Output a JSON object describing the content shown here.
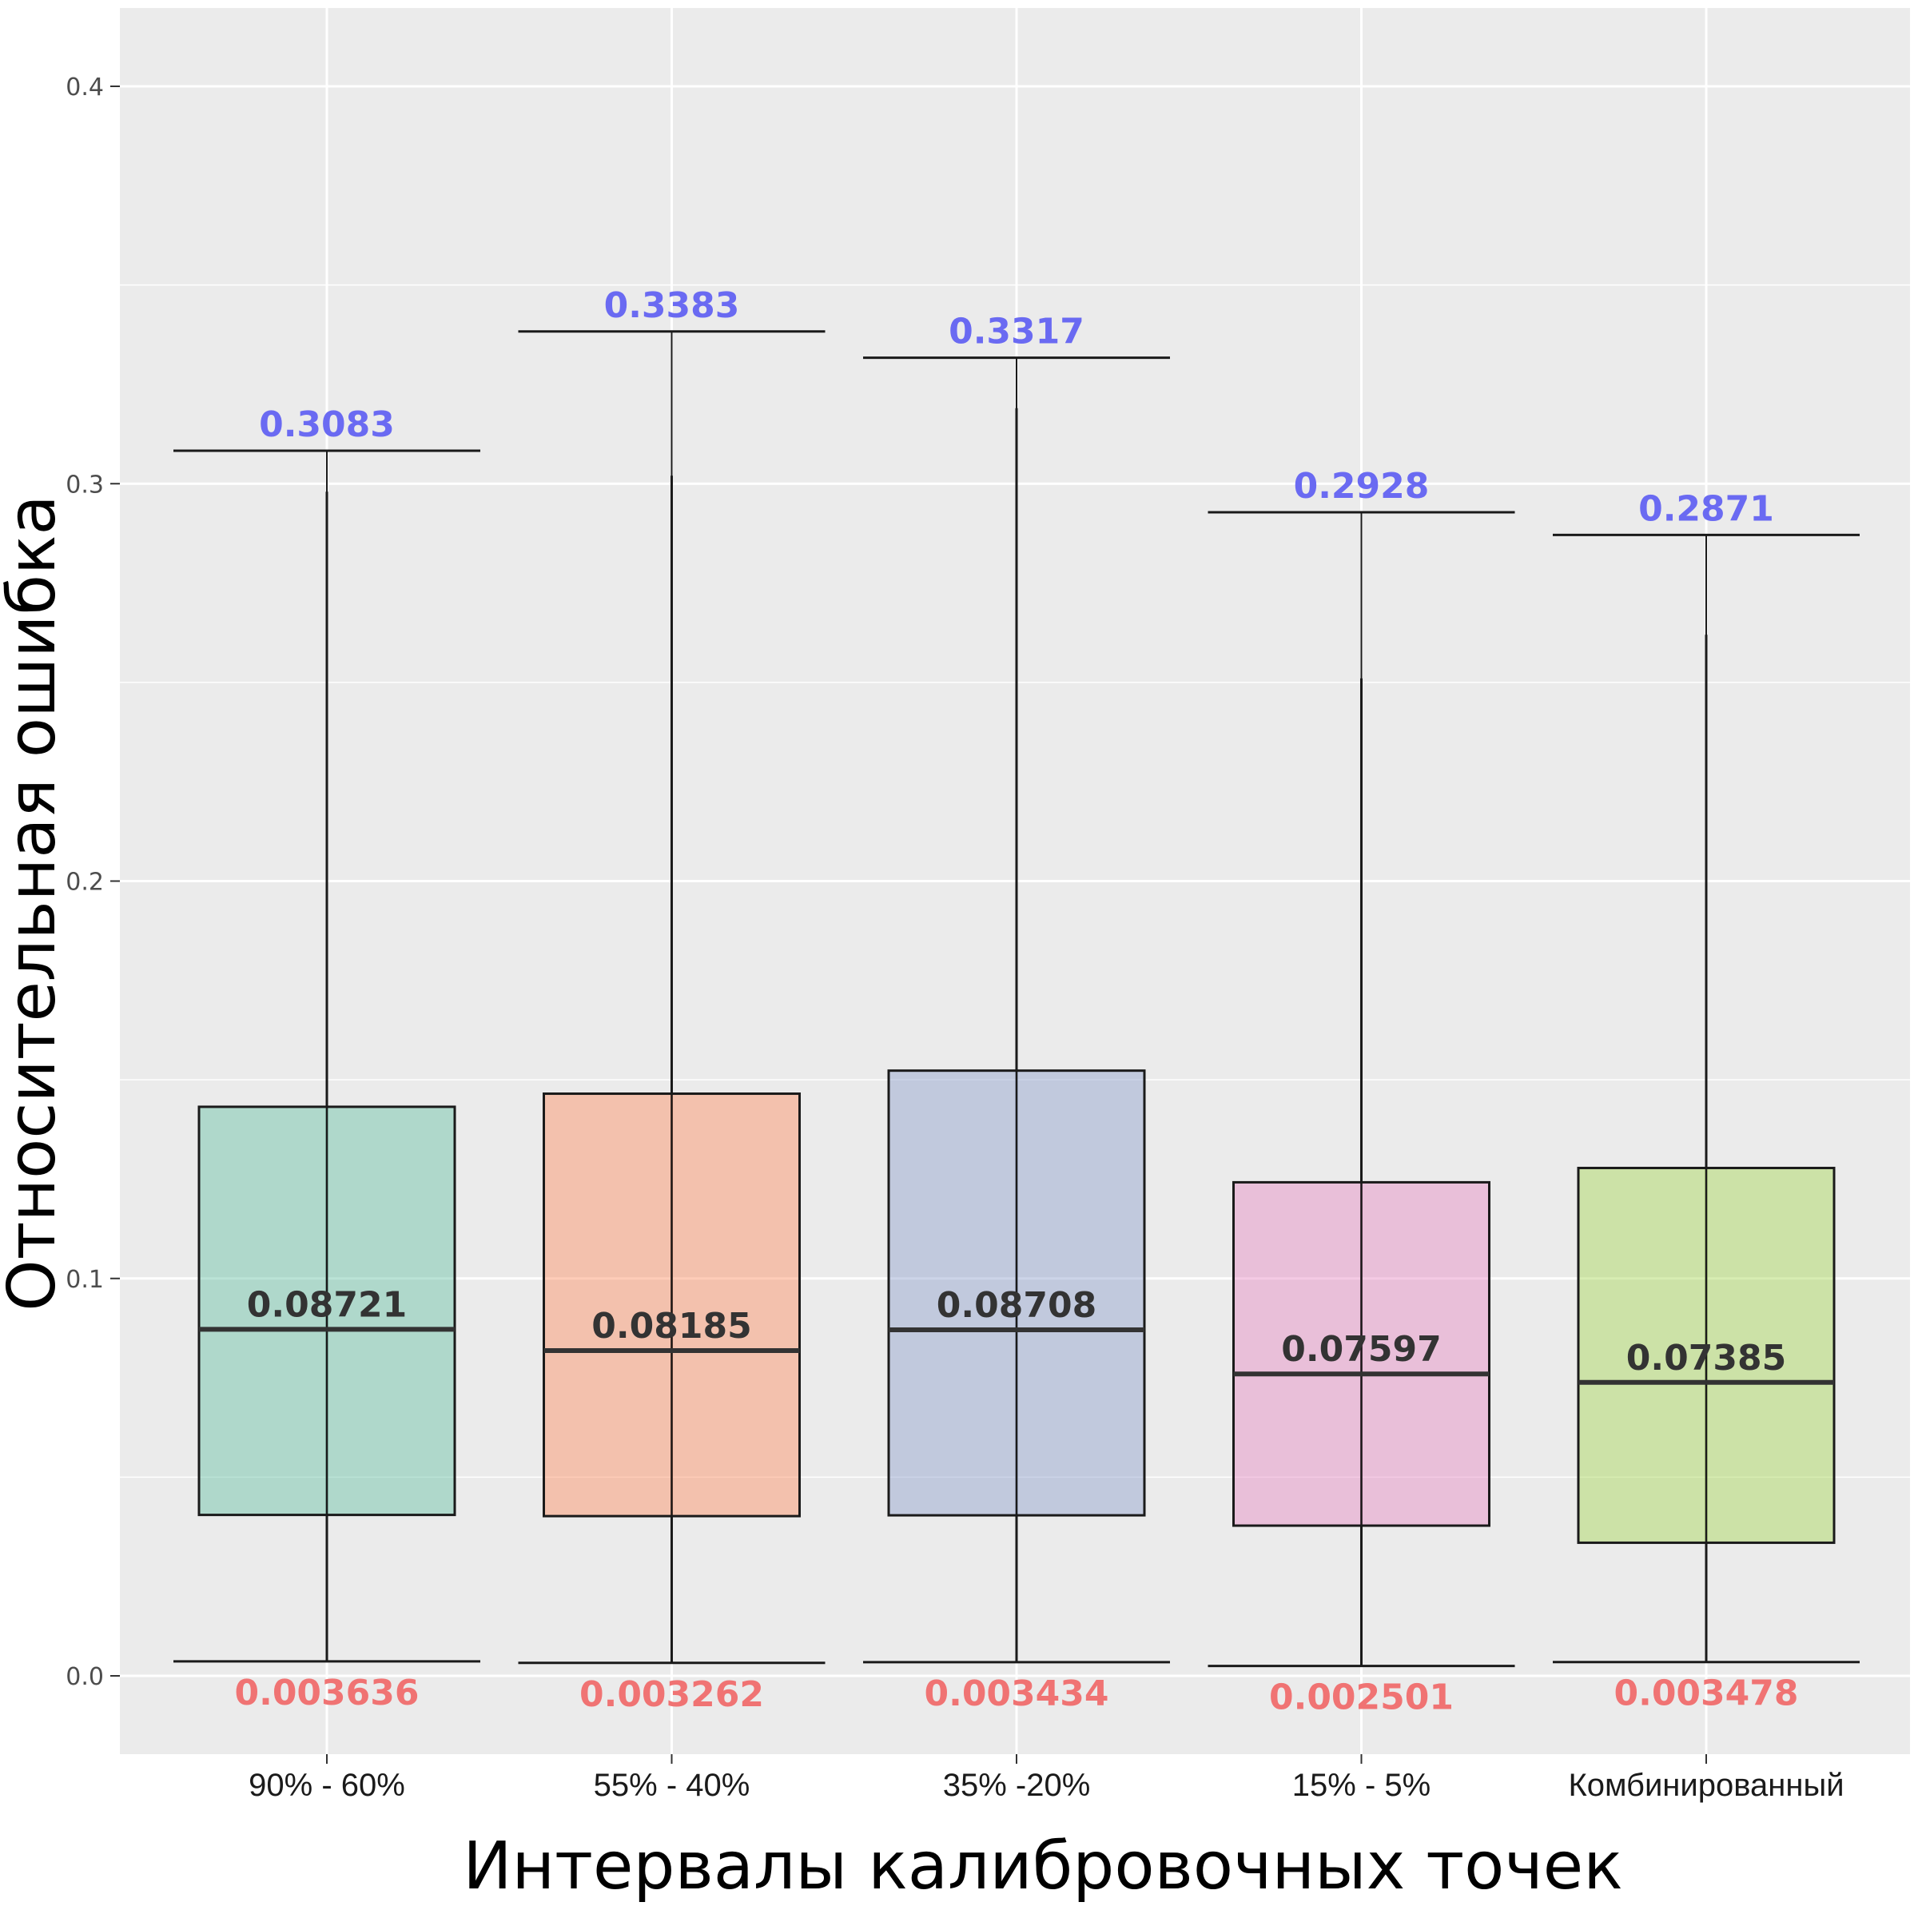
{
  "chart_data": {
    "type": "boxplot",
    "title": "",
    "xlabel": "Интервалы калибровочных точек",
    "ylabel": "Относительная ошибка",
    "ylim": [
      -0.02,
      0.42
    ],
    "yticks": [
      0.0,
      0.1,
      0.2,
      0.3,
      0.4
    ],
    "ytick_labels": [
      "0.0",
      "0.1",
      "0.2",
      "0.3",
      "0.4"
    ],
    "grid": true,
    "legend": "none",
    "categories": [
      "90% - 60%",
      "55% - 40%",
      "35% -20%",
      "15% - 5%",
      "Комбинированный"
    ],
    "boxes": [
      {
        "min": 0.003636,
        "q1": 0.0405,
        "median": 0.08721,
        "q3": 0.1432,
        "max": 0.3083,
        "whisker_top": 0.298,
        "min_label": "0.003636",
        "median_label": "0.08721",
        "max_label": "0.3083",
        "color": "#66c2a5"
      },
      {
        "min": 0.003262,
        "q1": 0.0402,
        "median": 0.08185,
        "q3": 0.1465,
        "max": 0.3383,
        "whisker_top": 0.302,
        "min_label": "0.003262",
        "median_label": "0.08185",
        "max_label": "0.3383",
        "color": "#fc8d62"
      },
      {
        "min": 0.003434,
        "q1": 0.0404,
        "median": 0.08708,
        "q3": 0.1523,
        "max": 0.3317,
        "whisker_top": 0.319,
        "min_label": "0.003434",
        "median_label": "0.08708",
        "max_label": "0.3317",
        "color": "#8da0cb"
      },
      {
        "min": 0.002501,
        "q1": 0.0378,
        "median": 0.07597,
        "q3": 0.1242,
        "max": 0.2928,
        "whisker_top": 0.251,
        "min_label": "0.002501",
        "median_label": "0.07597",
        "max_label": "0.2928",
        "color": "#e78ac3"
      },
      {
        "min": 0.003478,
        "q1": 0.0335,
        "median": 0.07385,
        "q3": 0.1278,
        "max": 0.2871,
        "whisker_top": 0.262,
        "min_label": "0.003478",
        "median_label": "0.07385",
        "max_label": "0.2871",
        "color": "#a6d854"
      }
    ],
    "label_colors": {
      "max": "#6a6af2",
      "median": "#333333",
      "min": "#f07373"
    },
    "panel_background": "#ebebeb",
    "grid_color": "#ffffff"
  }
}
